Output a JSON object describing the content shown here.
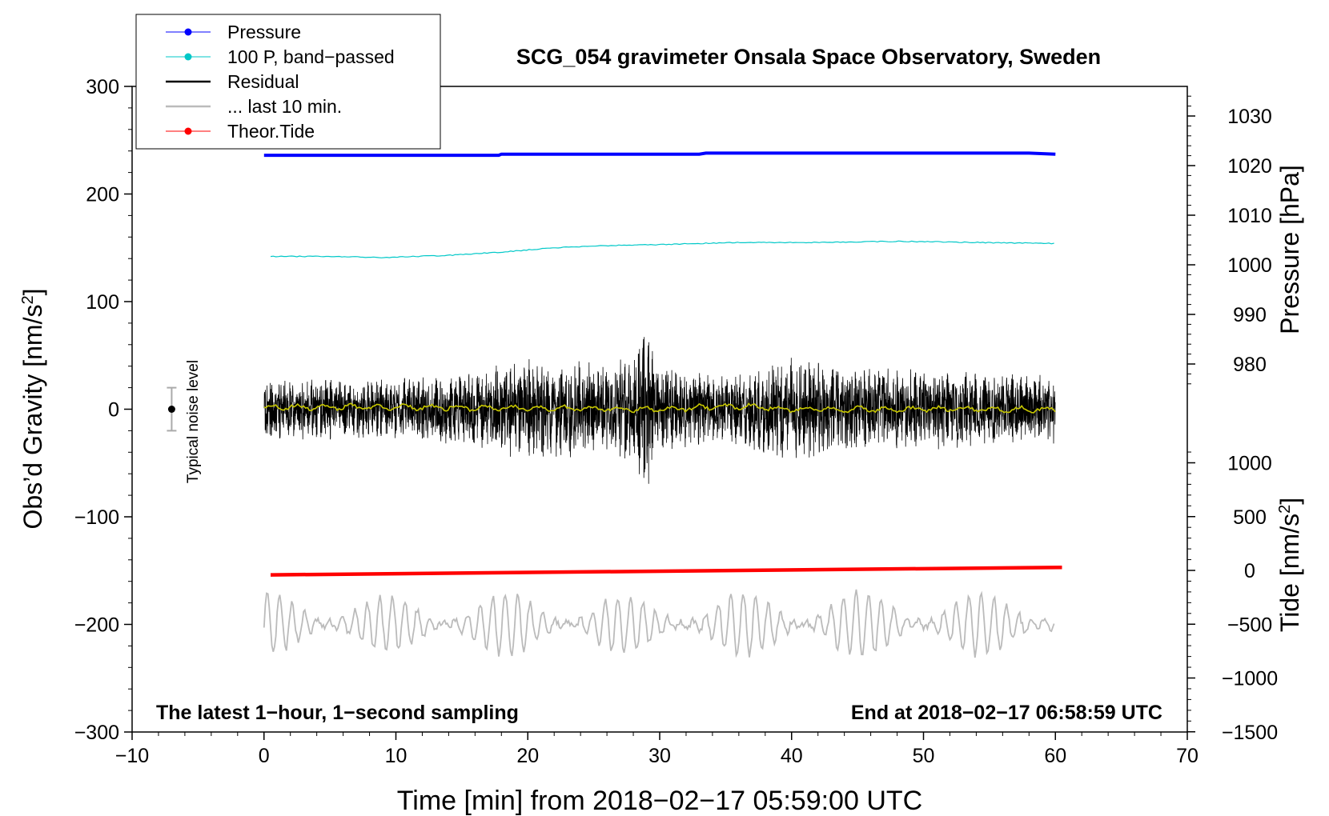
{
  "chart_data": {
    "type": "line",
    "title": "SCG_054 gravimeter Onsala Space Observatory, Sweden",
    "xlabel": "Time [min] from 2018−02−17 05:59:00 UTC",
    "ylabel_left": "Obs’d Gravity [nm/s",
    "ylabel_left_sup": "2",
    "ylabel_left_close": "]",
    "ylabel_right_top": "Pressure [hPa]",
    "ylabel_right_bottom": "Tide [nm/s",
    "ylabel_right_bottom_sup": "2",
    "ylabel_right_bottom_close": "]",
    "xlim": [
      -10,
      70
    ],
    "ylim_left": [
      -300,
      300
    ],
    "pressure_axis": {
      "ticks": [
        980,
        990,
        1000,
        1010,
        1020,
        1030
      ]
    },
    "tide_axis": {
      "ticks": [
        -1500,
        -1000,
        -500,
        0,
        500,
        1000
      ]
    },
    "x_ticks": [
      -10,
      0,
      10,
      20,
      30,
      40,
      50,
      60,
      70
    ],
    "y_ticks_left": [
      -300,
      -200,
      -100,
      0,
      100,
      200,
      300
    ],
    "tick_labels": {
      "x": [
        "−10",
        "0",
        "10",
        "20",
        "30",
        "40",
        "50",
        "60",
        "70"
      ],
      "left": [
        "−300",
        "−200",
        "−100",
        "0",
        "100",
        "200",
        "300"
      ],
      "pressure": [
        "980",
        "990",
        "1000",
        "1010",
        "1020",
        "1030"
      ],
      "tide": [
        "−1500",
        "−1000",
        "−500",
        "0",
        "500",
        "1000"
      ]
    },
    "legend": {
      "placement": "top-left",
      "entries": [
        {
          "label": "Pressure",
          "color": "#0000ff",
          "marker": true,
          "style": "thin"
        },
        {
          "label": "100 P, band−passed",
          "color": "#00c8c8",
          "marker": true,
          "style": "thin"
        },
        {
          "label": "Residual",
          "color": "#000000",
          "marker": false,
          "style": "thick"
        },
        {
          "label": "... last 10 min.",
          "color": "#bbbbbb",
          "marker": false,
          "style": "thick"
        },
        {
          "label": "Theor.Tide",
          "color": "#ff0000",
          "marker": true,
          "style": "thin"
        }
      ]
    },
    "annotations": {
      "bottom_left": "The latest 1−hour, 1−second sampling",
      "bottom_right": "End at 2018−02−17 06:58:59 UTC",
      "noise": "Typical noise level"
    },
    "noise_bar": {
      "x": -7,
      "center": 0,
      "half_range": 20
    },
    "series": [
      {
        "name": "Pressure",
        "color": "#0000ff",
        "axis": "left",
        "x": [
          0,
          10,
          17.8,
          18,
          33,
          33.5,
          45,
          58,
          60
        ],
        "y": [
          236,
          236,
          236,
          237,
          237,
          238,
          238,
          238,
          237
        ]
      },
      {
        "name": "100 P, band−passed",
        "color": "#00c8c8",
        "axis": "left",
        "x": [
          0.5,
          5,
          9,
          14,
          18,
          22,
          26,
          30,
          36,
          42,
          48,
          54,
          60
        ],
        "y": [
          142,
          142,
          141,
          143,
          146,
          150,
          152,
          153,
          155,
          155,
          156,
          155,
          154
        ]
      },
      {
        "name": "Residual",
        "color": "#000000",
        "axis": "left",
        "x": [
          0,
          5,
          10,
          15,
          20,
          25,
          28,
          29,
          30,
          35,
          40,
          45,
          50,
          55,
          60
        ],
        "amplitude": [
          28,
          30,
          28,
          35,
          48,
          45,
          50,
          75,
          42,
          30,
          50,
          38,
          38,
          35,
          32
        ]
      },
      {
        "name": "residual smoothed",
        "color": "#c8c800",
        "axis": "left",
        "x": [
          0,
          10,
          20,
          30,
          36,
          40,
          50,
          60
        ],
        "y": [
          2,
          2,
          1,
          0,
          3,
          0,
          0,
          0
        ]
      },
      {
        "name": "Theor.Tide",
        "color": "#ff0000",
        "axis": "left",
        "x": [
          0.5,
          60.5
        ],
        "y": [
          -154,
          -147
        ]
      },
      {
        "name": "... last 10 min.",
        "color": "#bbbbbb",
        "axis": "left",
        "x": [
          0,
          10,
          20,
          30,
          40,
          50,
          60
        ],
        "center": -200,
        "amplitude": [
          28,
          25,
          30,
          25,
          32,
          28,
          30
        ]
      }
    ]
  }
}
